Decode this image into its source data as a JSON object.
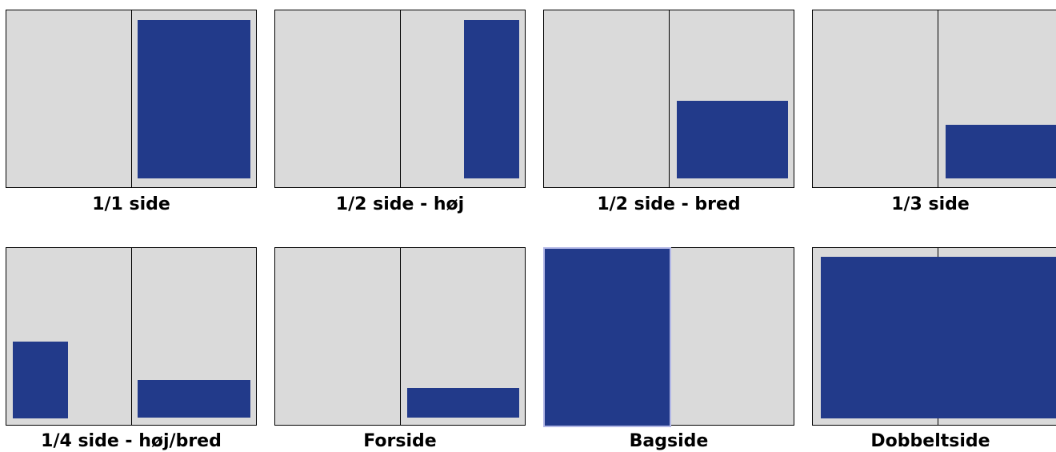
{
  "colors": {
    "page": "#dadada",
    "ad": "#223a8a",
    "border": "#000000",
    "highlight": "#b3b8e6"
  },
  "formats": [
    {
      "id": "full-page",
      "label": "1/1 side"
    },
    {
      "id": "half-page-tall",
      "label": "1/2 side - høj"
    },
    {
      "id": "half-page-wide",
      "label": "1/2 side - bred"
    },
    {
      "id": "third-page",
      "label": "1/3 side"
    },
    {
      "id": "quarter-page",
      "label": "1/4 side - høj/bred"
    },
    {
      "id": "front-page",
      "label": "Forside"
    },
    {
      "id": "back-page",
      "label": "Bagside"
    },
    {
      "id": "double-page",
      "label": "Dobbeltside"
    }
  ]
}
